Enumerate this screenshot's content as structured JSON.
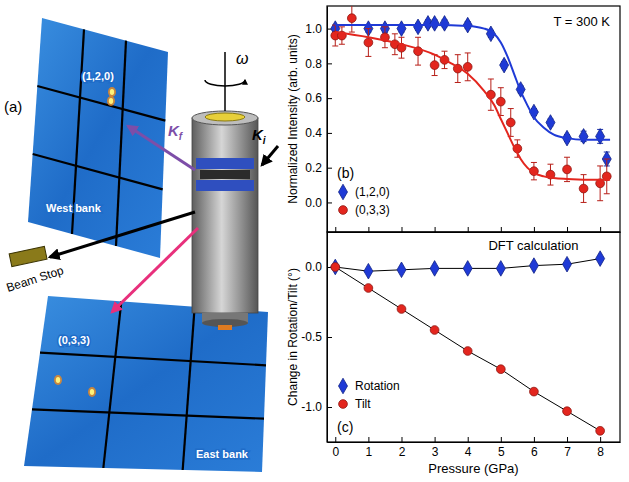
{
  "chart_data": [
    {
      "type": "scatter",
      "annotations": [
        "(b)",
        "T = 300 K"
      ],
      "y_label": "Normalized Intensity (arb. units)",
      "xlim": [
        -0.25,
        8.6
      ],
      "xticks": [
        0,
        1,
        2,
        3,
        4,
        5,
        6,
        7,
        8
      ],
      "ylim": [
        -0.17,
        1.13
      ],
      "yticks": [
        {
          "value": 0,
          "label": "0.0"
        },
        {
          "value": 0.2,
          "label": "0.2"
        },
        {
          "value": 0.4,
          "label": "0.4"
        },
        {
          "value": 0.6,
          "label": "0.6"
        },
        {
          "value": 0.8,
          "label": "0.8"
        },
        {
          "value": 1,
          "label": "1.0"
        }
      ],
      "tick_labels": "y",
      "legend": "lower left",
      "series": [
        {
          "name": "(1,2,0)",
          "color": "#1f3ad6",
          "marker": "diamond",
          "line_style": "none",
          "x": [
            0,
            1,
            1.5,
            2,
            2.5,
            2.8,
            3,
            3.3,
            4,
            4.7,
            5.1,
            5.6,
            6,
            6.5,
            7,
            7.5,
            8,
            8.2
          ],
          "values": [
            1.0,
            1.0,
            1.0,
            1.0,
            1.01,
            1.03,
            1.03,
            1.03,
            1.02,
            0.97,
            0.79,
            0.65,
            0.52,
            0.46,
            0.37,
            0.38,
            0.38,
            0.25
          ],
          "errors": [
            0.02,
            0.02,
            0.02,
            0.02,
            0.02,
            0.02,
            0.02,
            0.02,
            0.02,
            0.02,
            0.02,
            0.02,
            0.02,
            0.02,
            0.02,
            0.03,
            0.04,
            0.04
          ]
        },
        {
          "name": "(0,3,3)",
          "color": "#e3261e",
          "marker": "circle",
          "line_style": "none",
          "x": [
            0,
            0.2,
            0.5,
            1,
            1.5,
            1.8,
            2,
            2.5,
            3,
            3.3,
            3.7,
            4,
            4.7,
            5,
            5.3,
            5.5,
            6,
            6.5,
            7,
            7.5,
            8,
            8.2
          ],
          "values": [
            0.96,
            0.96,
            1.06,
            0.92,
            0.95,
            0.91,
            0.89,
            0.87,
            0.79,
            0.82,
            0.77,
            0.78,
            0.62,
            0.58,
            0.46,
            0.31,
            0.18,
            0.16,
            0.19,
            0.08,
            0.11,
            0.15
          ],
          "errors": [
            0.06,
            0.05,
            0.08,
            0.08,
            0.06,
            0.06,
            0.06,
            0.08,
            0.06,
            0.05,
            0.08,
            0.08,
            0.09,
            0.08,
            0.08,
            0.05,
            0.05,
            0.06,
            0.07,
            0.08,
            0.1,
            0.1
          ]
        },
        {
          "type": "line",
          "color": "#1f3ad6",
          "marker": "none",
          "line_style": "solid",
          "x": [
            0,
            1,
            2,
            3,
            4,
            4.5,
            4.8,
            5,
            5.2,
            5.4,
            5.6,
            5.8,
            6,
            6.3,
            6.6,
            7,
            7.5,
            8,
            8.3
          ],
          "values": [
            1.02,
            1.02,
            1.02,
            1.02,
            1.015,
            1.0,
            0.97,
            0.92,
            0.84,
            0.74,
            0.64,
            0.56,
            0.49,
            0.43,
            0.39,
            0.37,
            0.36,
            0.36,
            0.36
          ]
        },
        {
          "type": "line",
          "color": "#e3261e",
          "marker": "none",
          "line_style": "solid",
          "x": [
            0,
            1,
            2,
            3,
            3.5,
            4,
            4.5,
            4.8,
            5,
            5.2,
            5.4,
            5.6,
            5.8,
            6,
            6.3,
            6.6,
            7,
            8,
            8.3
          ],
          "values": [
            0.98,
            0.95,
            0.91,
            0.85,
            0.8,
            0.74,
            0.64,
            0.56,
            0.48,
            0.4,
            0.32,
            0.25,
            0.2,
            0.17,
            0.15,
            0.14,
            0.135,
            0.13,
            0.13
          ]
        }
      ]
    },
    {
      "type": "line",
      "annotations": [
        "DFT calculation",
        "(c)"
      ],
      "x_label": "Pressure (GPa)",
      "y_label": "Change in Rotation/Tilt (°)",
      "x": [
        0,
        1,
        2,
        3,
        4,
        5,
        6,
        7,
        8
      ],
      "xlim": [
        -0.25,
        8.6
      ],
      "xticks": [
        0,
        1,
        2,
        3,
        4,
        5,
        6,
        7,
        8
      ],
      "ylim": [
        -1.25,
        0.25
      ],
      "yticks": [
        {
          "value": -1,
          "label": "-1.0"
        },
        {
          "value": -0.5,
          "label": "-0.5"
        },
        {
          "value": 0,
          "label": "0.0"
        }
      ],
      "legend": "lower left",
      "series": [
        {
          "name": "Rotation",
          "color": "#1f3ad6",
          "marker": "diamond",
          "line_style": "solid",
          "values": [
            0,
            -0.03,
            -0.02,
            -0.01,
            -0.01,
            -0.01,
            0.01,
            0.02,
            0.06
          ]
        },
        {
          "name": "Tilt",
          "color": "#e3261e",
          "marker": "circle",
          "line_style": "solid",
          "values": [
            0,
            -0.15,
            -0.3,
            -0.45,
            -0.6,
            -0.73,
            -0.89,
            -1.03,
            -1.17
          ]
        }
      ]
    }
  ],
  "diagram": {
    "panel_label": "(a)",
    "west_bank": {
      "label": "West bank",
      "peak": "(1,2,0)"
    },
    "east_bank": {
      "label": "East bank",
      "peak": "(0,3,3)"
    },
    "kf": {
      "base": "K",
      "sub": "f"
    },
    "ki": {
      "base": "K",
      "sub": "i"
    },
    "rotation": "ω",
    "beam_stop": "Beam Stop"
  }
}
